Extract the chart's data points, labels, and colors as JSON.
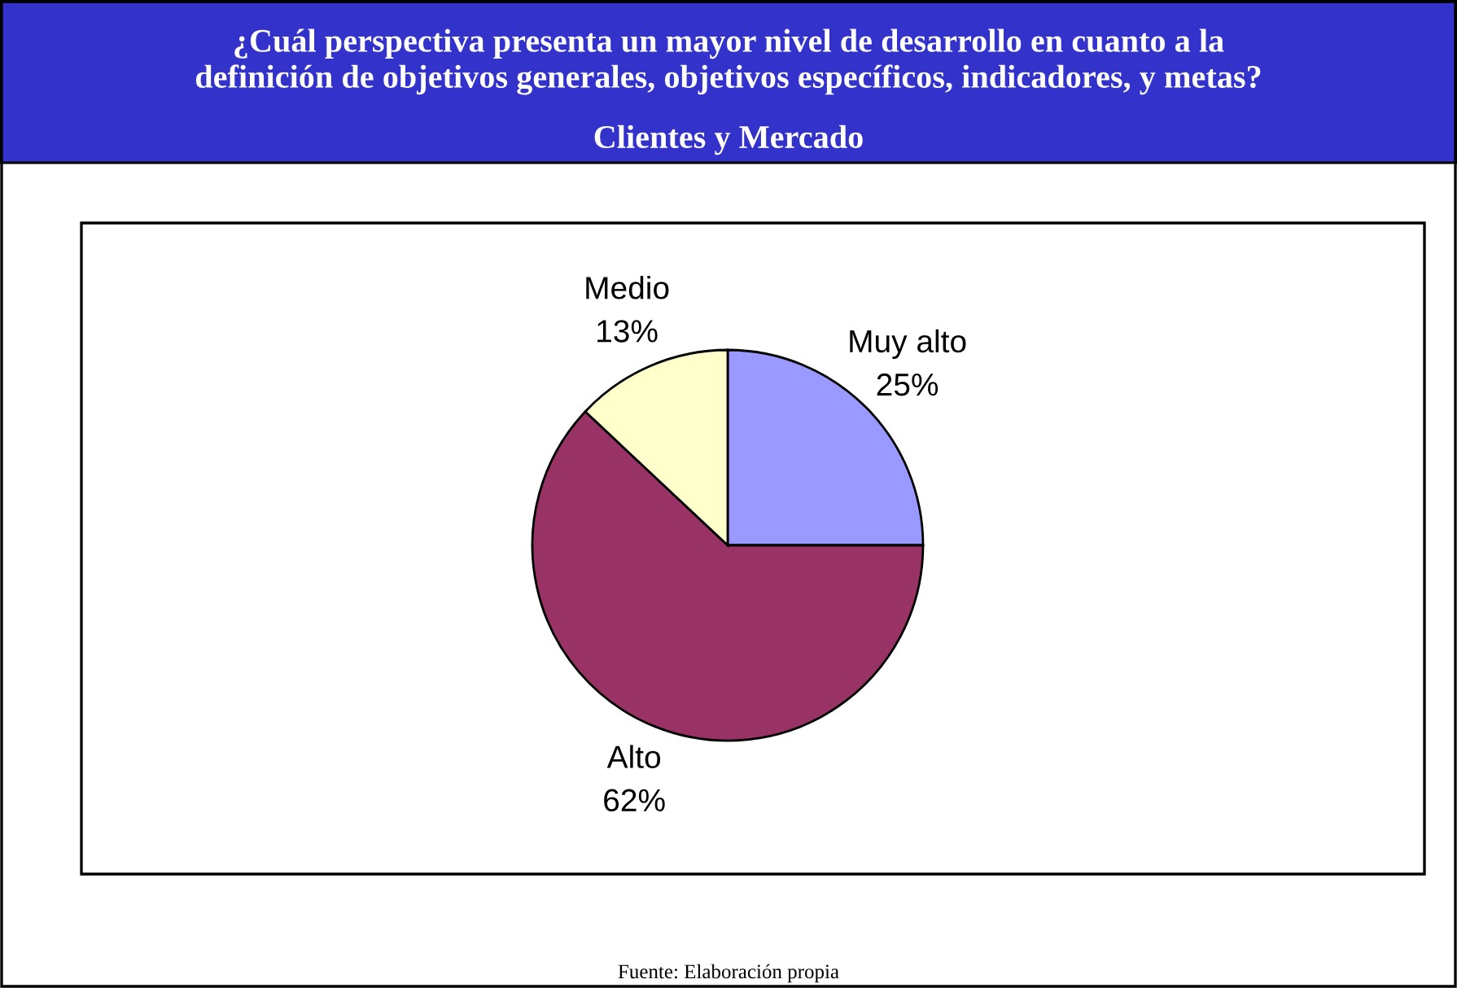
{
  "chart_data": {
    "type": "pie",
    "title": "¿Cuál perspectiva presenta un mayor nivel de desarrollo en cuanto a la\ndefinición de objetivos generales, objetivos específicos, indicadores, y metas?",
    "subtitle": "Clientes y Mercado",
    "categories": [
      "Muy alto",
      "Alto",
      "Medio"
    ],
    "values": [
      25,
      62,
      13
    ],
    "value_labels": [
      "25%",
      "62%",
      "13%"
    ],
    "colors": [
      "#9999ff",
      "#993366",
      "#ffffcc"
    ],
    "annotations": [
      "Fuente: Elaboración propia"
    ],
    "legend": false
  }
}
